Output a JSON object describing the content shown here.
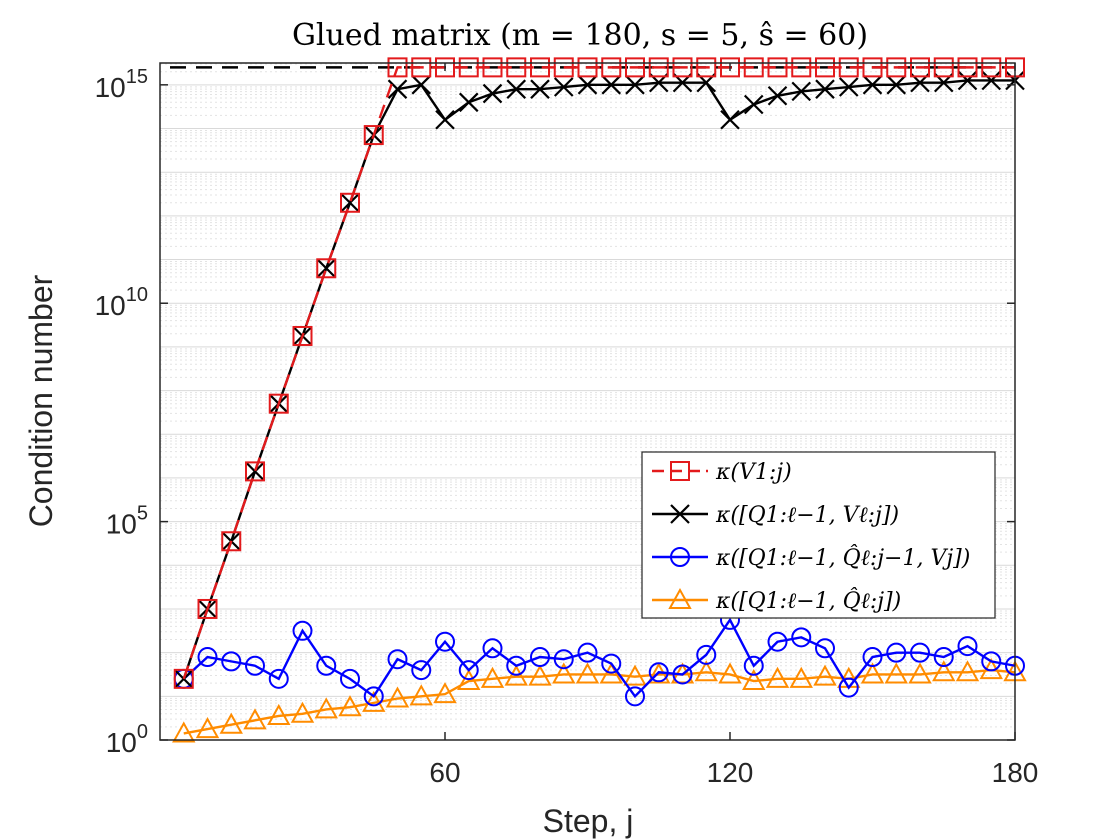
{
  "chart_data": {
    "type": "line",
    "title": "Glued matrix (m = 180,  s = 5,  ŝ = 60)",
    "xlabel": "Step, j",
    "ylabel": "Condition number",
    "xlim": [
      0,
      180
    ],
    "ylim_log10": [
      0,
      15.5
    ],
    "xticks": [
      60,
      120,
      180
    ],
    "xtick_labels": [
      "60",
      "120",
      "180"
    ],
    "yticks_log10": [
      0,
      5,
      10,
      15
    ],
    "ytick_labels": [
      {
        "base": "10",
        "exp": "0"
      },
      {
        "base": "10",
        "exp": "5"
      },
      {
        "base": "10",
        "exp": "10"
      },
      {
        "base": "10",
        "exp": "15"
      }
    ],
    "reference_line": {
      "style": "dashed",
      "color": "#000000",
      "log10_value": 15.4
    },
    "legend_position": "center-right",
    "x": [
      5,
      10,
      15,
      20,
      25,
      30,
      35,
      40,
      45,
      50,
      55,
      60,
      65,
      70,
      75,
      80,
      85,
      90,
      95,
      100,
      105,
      110,
      115,
      120,
      125,
      130,
      135,
      140,
      145,
      150,
      155,
      160,
      165,
      170,
      175,
      180
    ],
    "series": [
      {
        "name": "κ(V_{1:j})",
        "legend": "κ(V1:j)",
        "color": "#e31a1c",
        "marker": "square",
        "linestyle": "dashed",
        "log10_values": [
          1.4,
          3.0,
          4.55,
          6.15,
          7.7,
          9.25,
          10.8,
          12.3,
          13.85,
          15.4,
          15.4,
          15.4,
          15.4,
          15.4,
          15.4,
          15.4,
          15.4,
          15.4,
          15.4,
          15.4,
          15.4,
          15.4,
          15.4,
          15.4,
          15.4,
          15.4,
          15.4,
          15.4,
          15.4,
          15.4,
          15.4,
          15.4,
          15.4,
          15.4,
          15.4,
          15.4
        ],
        "x_override": [
          5,
          10,
          15,
          20,
          25,
          30,
          35,
          40,
          45,
          50,
          55,
          60,
          65,
          70,
          75,
          80,
          85,
          90,
          95,
          100,
          105,
          110,
          115,
          120,
          125,
          130,
          135,
          140,
          145,
          150,
          155,
          160,
          165,
          170,
          175,
          180
        ]
      },
      {
        "name": "κ([Q_{1:ℓ−1}, V_{ℓ:j}])",
        "legend": "κ([Q1:ℓ−1, Vℓ:j])",
        "color": "#000000",
        "marker": "x",
        "linestyle": "solid",
        "log10_values": [
          1.4,
          3.0,
          4.55,
          6.15,
          7.7,
          9.25,
          10.8,
          12.3,
          13.85,
          14.9,
          15.0,
          14.2,
          14.6,
          14.8,
          14.9,
          14.9,
          14.95,
          15.0,
          15.0,
          15.0,
          15.05,
          15.05,
          15.05,
          14.2,
          14.55,
          14.75,
          14.85,
          14.9,
          14.95,
          15.0,
          15.0,
          15.05,
          15.05,
          15.1,
          15.1,
          15.1
        ]
      },
      {
        "name": "κ([Q_{1:ℓ−1}, Q̂_{ℓ:j−1}, V_j])",
        "legend": "κ([Q1:ℓ−1, Q̂ℓ:j−1, Vj])",
        "color": "#0000ff",
        "marker": "circle",
        "linestyle": "solid",
        "log10_values": [
          1.4,
          1.9,
          1.8,
          1.7,
          1.4,
          2.5,
          1.7,
          1.4,
          1.0,
          1.85,
          1.6,
          2.25,
          1.6,
          2.1,
          1.7,
          1.9,
          1.85,
          2.0,
          1.75,
          1.0,
          1.55,
          1.5,
          1.95,
          2.75,
          1.7,
          2.25,
          2.35,
          2.1,
          1.2,
          1.9,
          2.0,
          2.0,
          1.9,
          2.15,
          1.8,
          1.7
        ]
      },
      {
        "name": "κ([Q_{1:ℓ−1}, Q̂_{ℓ:j}])",
        "legend": "κ([Q1:ℓ−1, Q̂ℓ:j])",
        "color": "#ff8c00",
        "marker": "triangle",
        "linestyle": "solid",
        "log10_values": [
          0.15,
          0.25,
          0.35,
          0.45,
          0.55,
          0.6,
          0.7,
          0.75,
          0.85,
          0.95,
          1.0,
          1.05,
          1.35,
          1.4,
          1.45,
          1.45,
          1.5,
          1.5,
          1.5,
          1.45,
          1.5,
          1.5,
          1.55,
          1.5,
          1.35,
          1.4,
          1.4,
          1.45,
          1.4,
          1.5,
          1.5,
          1.5,
          1.55,
          1.55,
          1.6,
          1.55
        ]
      }
    ]
  }
}
